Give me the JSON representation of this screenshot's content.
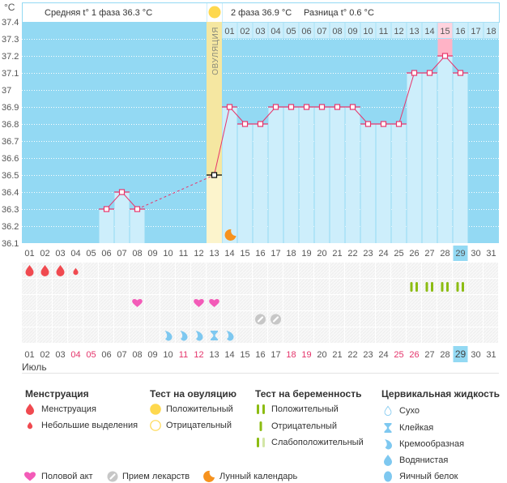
{
  "header": {
    "unit": "°C",
    "phase1_avg": "Средняя t° 1 фаза 36.3 °C",
    "phase2_avg": "2 фаза 36.9 °C",
    "difference": "Разница t° 0.6 °C",
    "ovulation_label": "ОВУЛЯЦИЯ"
  },
  "chart_data": {
    "type": "line",
    "title": "",
    "xlabel": "Июль",
    "ylabel": "°C",
    "ylim": [
      36.1,
      37.4
    ],
    "grid": true,
    "yticks": [
      "37.4",
      "37.3",
      "37.2",
      "37.1",
      "37",
      "36.9",
      "36.8",
      "36.7",
      "36.6",
      "36.5",
      "36.4",
      "36.3",
      "36.2",
      "36.1"
    ],
    "x": [
      "01",
      "02",
      "03",
      "04",
      "05",
      "06",
      "07",
      "08",
      "09",
      "10",
      "11",
      "12",
      "13",
      "14",
      "15",
      "16",
      "17",
      "18",
      "19",
      "20",
      "21",
      "22",
      "23",
      "24",
      "25",
      "26",
      "27",
      "28",
      "29",
      "30",
      "31"
    ],
    "temperature": [
      {
        "day": 6,
        "value": 36.3
      },
      {
        "day": 7,
        "value": 36.4
      },
      {
        "day": 8,
        "value": 36.3
      },
      {
        "day": 13,
        "value": 36.5
      },
      {
        "day": 14,
        "value": 36.9
      },
      {
        "day": 15,
        "value": 36.8
      },
      {
        "day": 16,
        "value": 36.8
      },
      {
        "day": 17,
        "value": 36.9
      },
      {
        "day": 18,
        "value": 36.9
      },
      {
        "day": 19,
        "value": 36.9
      },
      {
        "day": 20,
        "value": 36.9
      },
      {
        "day": 21,
        "value": 36.9
      },
      {
        "day": 22,
        "value": 36.9
      },
      {
        "day": 23,
        "value": 36.8
      },
      {
        "day": 24,
        "value": 36.8
      },
      {
        "day": 25,
        "value": 36.8
      },
      {
        "day": 26,
        "value": 37.1
      },
      {
        "day": 27,
        "value": 37.1
      },
      {
        "day": 28,
        "value": 37.2
      },
      {
        "day": 29,
        "value": 37.1
      }
    ],
    "ovulation_day": 13,
    "lunar_days": [
      14
    ],
    "cycle_start_day": 14,
    "cycle_days": [
      "01",
      "02",
      "03",
      "04",
      "05",
      "06",
      "07",
      "08",
      "09",
      "10",
      "11",
      "12",
      "13",
      "14",
      "15",
      "16",
      "17",
      "18"
    ],
    "highlighted_cycle_day": "15",
    "today": "29"
  },
  "calendar": {
    "month": "Июль",
    "days": [
      "01",
      "02",
      "03",
      "04",
      "05",
      "06",
      "07",
      "08",
      "09",
      "10",
      "11",
      "12",
      "13",
      "14",
      "15",
      "16",
      "17",
      "18",
      "19",
      "20",
      "21",
      "22",
      "23",
      "24",
      "25",
      "26",
      "27",
      "28",
      "29",
      "30",
      "31"
    ],
    "weekend_days": [
      "04",
      "05",
      "11",
      "12",
      "18",
      "19",
      "25",
      "26"
    ],
    "today": "29"
  },
  "day_markers": {
    "menstruation": [
      {
        "day": 1,
        "type": "menstruation"
      },
      {
        "day": 2,
        "type": "menstruation"
      },
      {
        "day": 3,
        "type": "menstruation"
      },
      {
        "day": 4,
        "type": "spotting"
      }
    ],
    "pregnancy_test": [
      {
        "day": 26,
        "result": "positive"
      },
      {
        "day": 27,
        "result": "positive"
      },
      {
        "day": 28,
        "result": "positive"
      },
      {
        "day": 29,
        "result": "positive"
      }
    ],
    "intercourse": [
      8,
      12,
      13
    ],
    "medication": [
      16,
      17
    ],
    "cervical_fluid": [
      {
        "day": 10,
        "type": "creamy"
      },
      {
        "day": 11,
        "type": "creamy"
      },
      {
        "day": 12,
        "type": "creamy"
      },
      {
        "day": 13,
        "type": "sticky"
      },
      {
        "day": 14,
        "type": "creamy"
      }
    ]
  },
  "legend": {
    "menstruation": {
      "title": "Менструация",
      "items": [
        "Менструация",
        "Небольшие выделения"
      ]
    },
    "ovulation_test": {
      "title": "Тест на овуляцию",
      "items": [
        "Положительный",
        "Отрицательный"
      ]
    },
    "pregnancy_test": {
      "title": "Тест на беременность",
      "items": [
        "Положительный",
        "Отрицательный",
        "Слабоположительный"
      ]
    },
    "cervical_fluid": {
      "title": "Цервикальная жидкость",
      "items": [
        "Сухо",
        "Клейкая",
        "Кремообразная",
        "Водянистая",
        "Яичный белок"
      ]
    },
    "other": [
      "Половой акт",
      "Прием лекарств",
      "Лунный календарь"
    ]
  },
  "colors": {
    "background_blue": "#93d9f3",
    "bar": "#cdeefb",
    "line": "#e8356b",
    "ovulation": "#f5e7a1",
    "ovulation_light": "#fcf4cc",
    "highlight": "#ffb3c6",
    "highlight_light": "#ffd3de",
    "menstruation": "#f04a50",
    "intercourse": "#f35bb8",
    "medication": "#c7c7c7",
    "pregnancy": "#8cbc12",
    "pregnancy_weak": "#d3e6a6",
    "cervical": "#7ec8f0",
    "sun": "#fed84e",
    "moon": "#f6921e",
    "weekend": "#e4336a"
  }
}
